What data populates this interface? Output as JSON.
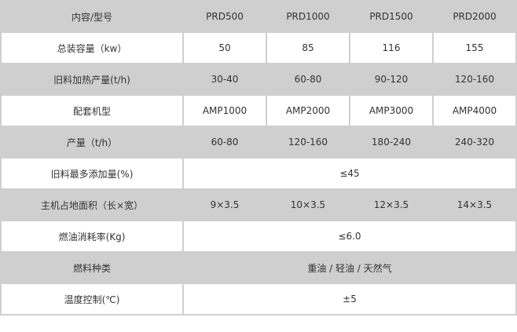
{
  "header": {
    "label": "内容/型号",
    "models": [
      "PRD500",
      "PRD1000",
      "PRD1500",
      "PRD2000"
    ]
  },
  "rows": [
    {
      "label": "总装容量（kw）",
      "values": [
        "50",
        "85",
        "116",
        "155"
      ]
    },
    {
      "label": "旧料加热产量(t/h)",
      "values": [
        "30-40",
        "60-80",
        "90-120",
        "120-160"
      ]
    },
    {
      "label": "配套机型",
      "values": [
        "AMP1000",
        "AMP2000",
        "AMP3000",
        "AMP4000"
      ]
    },
    {
      "label": "产量（t/h）",
      "values": [
        "60-80",
        "120-160",
        "180-240",
        "240-320"
      ]
    },
    {
      "label": "旧料最多添加量(%)",
      "merged": "≤45"
    },
    {
      "label": "主机占地面积（长×宽）",
      "values": [
        "9×3.5",
        "10×3.5",
        "12×3.5",
        "14×3.5"
      ]
    },
    {
      "label": "燃油消耗率(Kg)",
      "merged": "≤6.0"
    },
    {
      "label": "燃料种类",
      "merged": "重油 / 轻油 / 天然气"
    },
    {
      "label": "温度控制(℃)",
      "merged": "±5"
    }
  ]
}
